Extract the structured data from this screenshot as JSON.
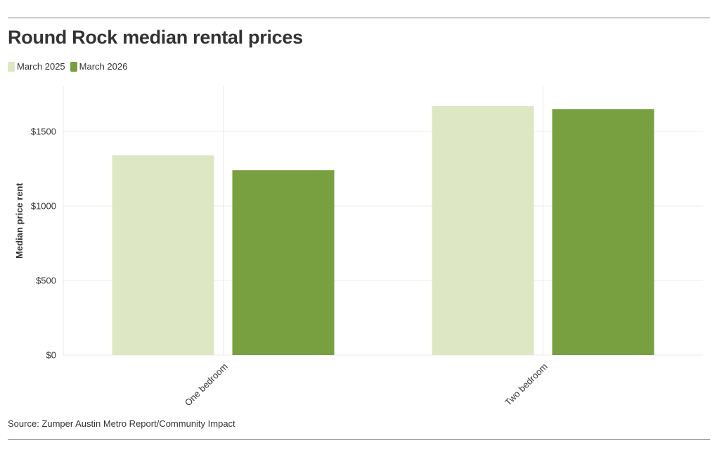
{
  "title": "Round Rock median rental prices",
  "source": "Source: Zumper Austin Metro Report/Community Impact",
  "colors": {
    "series_1": "#dde7c4",
    "series_2": "#78a040",
    "grid": "#ebebeb",
    "text": "#333333"
  },
  "chart_data": {
    "type": "bar",
    "title": "Round Rock median rental prices",
    "xlabel": "",
    "ylabel": "Median price rent",
    "categories": [
      "One bedroom",
      "Two bedroom"
    ],
    "series": [
      {
        "name": "March 2025",
        "values": [
          1340,
          1670
        ]
      },
      {
        "name": "March 2026",
        "values": [
          1240,
          1650
        ]
      }
    ],
    "yticks": [
      0,
      500,
      1000,
      1500
    ],
    "ytick_labels": [
      "$0",
      "$500",
      "$1000",
      "$1500"
    ],
    "ylim": [
      0,
      1800
    ],
    "legend": "top-left",
    "grid": true
  }
}
